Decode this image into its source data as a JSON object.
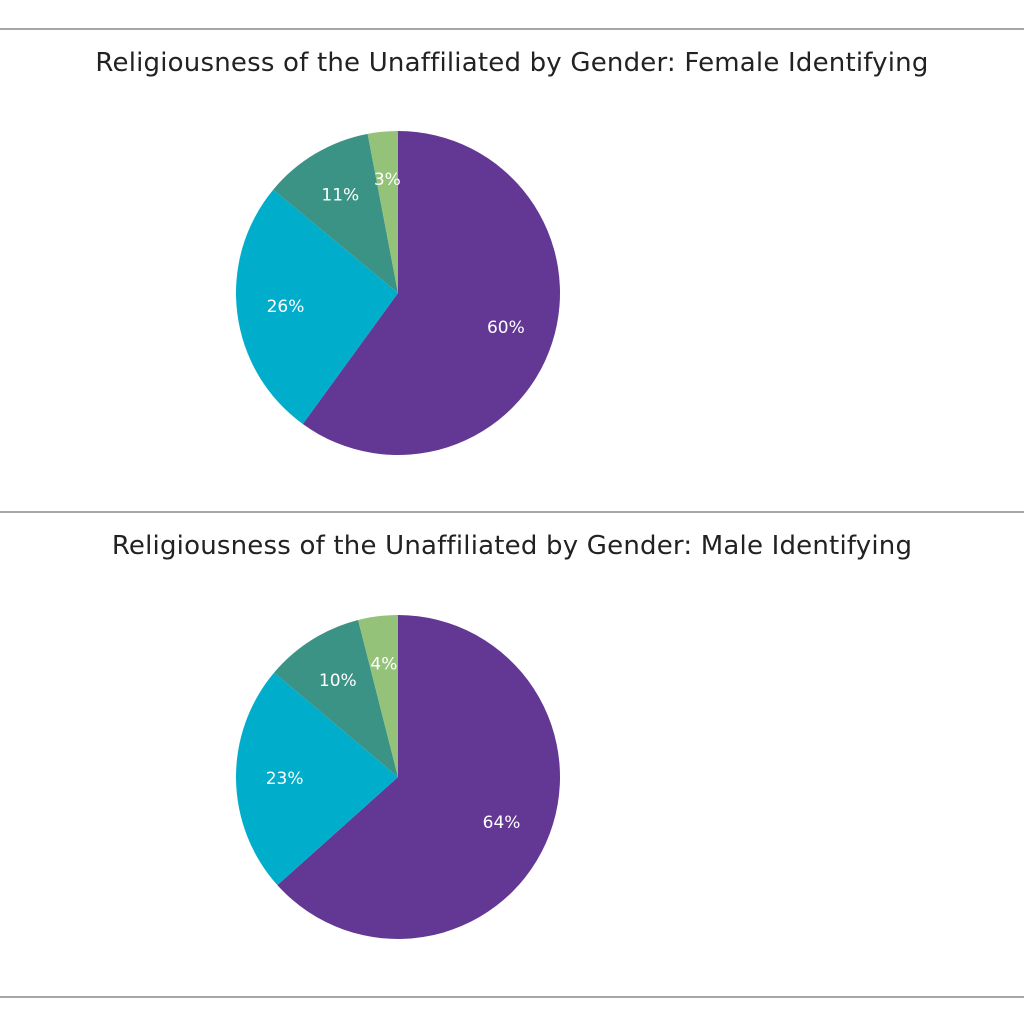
{
  "colors": {
    "purple": "#633894",
    "cyan": "#00aecc",
    "teal": "#3a9384",
    "green": "#94c279"
  },
  "chart_data": [
    {
      "type": "pie",
      "title": "Religiousness of the Unaffiliated by Gender: Female Identifying",
      "slices": [
        {
          "value": 60,
          "label": "60%",
          "color": "#633894"
        },
        {
          "value": 26,
          "label": "26%",
          "color": "#00aecc"
        },
        {
          "value": 11,
          "label": "11%",
          "color": "#3a9384"
        },
        {
          "value": 3,
          "label": "3%",
          "color": "#94c279"
        }
      ],
      "start": "12 o'clock",
      "direction": "clockwise",
      "legend": "none"
    },
    {
      "type": "pie",
      "title": "Religiousness of the Unaffiliated by Gender: Male Identifying",
      "slices": [
        {
          "value": 64,
          "label": "64%",
          "color": "#633894"
        },
        {
          "value": 23,
          "label": "23%",
          "color": "#00aecc"
        },
        {
          "value": 10,
          "label": "10%",
          "color": "#3a9384"
        },
        {
          "value": 4,
          "label": "4%",
          "color": "#94c279"
        }
      ],
      "start": "12 o'clock",
      "direction": "clockwise",
      "legend": "none"
    }
  ]
}
